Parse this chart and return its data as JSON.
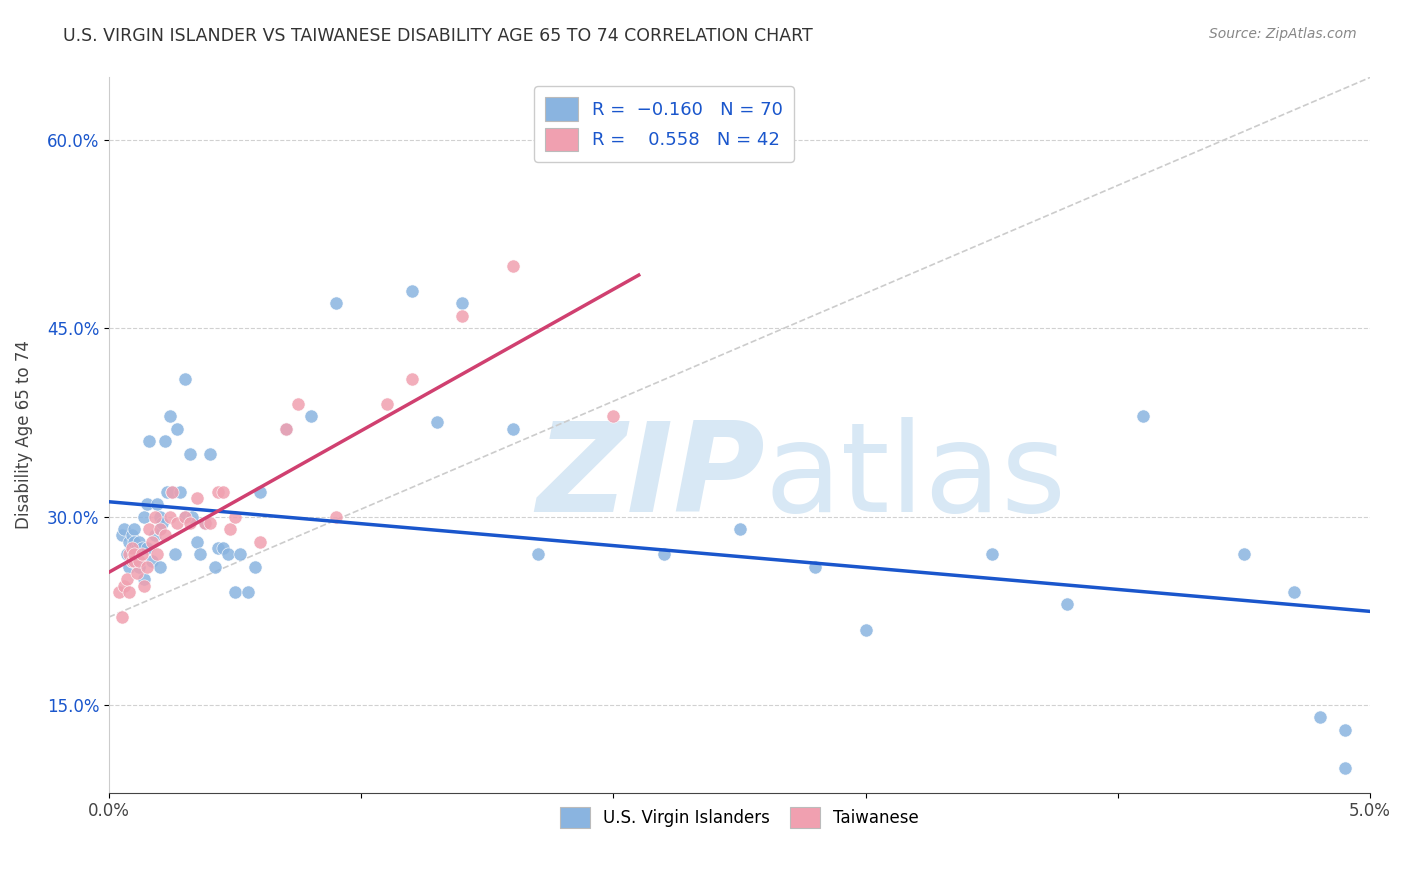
{
  "title": "U.S. VIRGIN ISLANDER VS TAIWANESE DISABILITY AGE 65 TO 74 CORRELATION CHART",
  "source": "Source: ZipAtlas.com",
  "ylabel": "Disability Age 65 to 74",
  "xlim": [
    0.0,
    0.05
  ],
  "ylim": [
    0.08,
    0.65
  ],
  "x_ticks": [
    0.0,
    0.01,
    0.02,
    0.03,
    0.04,
    0.05
  ],
  "x_tick_labels": [
    "0.0%",
    "",
    "",
    "",
    "",
    "5.0%"
  ],
  "y_ticks": [
    0.15,
    0.3,
    0.45,
    0.6
  ],
  "y_tick_labels": [
    "15.0%",
    "30.0%",
    "45.0%",
    "60.0%"
  ],
  "color_blue": "#8ab4e0",
  "color_pink": "#f0a0b0",
  "trend_blue": "#1a56cc",
  "trend_pink": "#d04070",
  "trend_ref": "#cccccc",
  "watermark_zip": "ZIP",
  "watermark_atlas": "atlas",
  "watermark_color": "#d8e8f5",
  "background": "#ffffff",
  "grid_color": "#cccccc",
  "label_blue": "U.S. Virgin Islanders",
  "label_pink": "Taiwanese",
  "R_blue": -0.16,
  "N_blue": 70,
  "R_pink": 0.558,
  "N_pink": 42,
  "blue_points_x": [
    0.0005,
    0.0006,
    0.0007,
    0.0008,
    0.0008,
    0.0009,
    0.0009,
    0.001,
    0.001,
    0.001,
    0.0011,
    0.0012,
    0.0012,
    0.0013,
    0.0014,
    0.0014,
    0.0015,
    0.0015,
    0.0016,
    0.0017,
    0.0018,
    0.0019,
    0.002,
    0.002,
    0.002,
    0.0021,
    0.0022,
    0.0023,
    0.0024,
    0.0025,
    0.0026,
    0.0027,
    0.0028,
    0.003,
    0.003,
    0.0032,
    0.0033,
    0.0035,
    0.0036,
    0.0038,
    0.004,
    0.0042,
    0.0043,
    0.0045,
    0.0047,
    0.005,
    0.0052,
    0.0055,
    0.0058,
    0.006,
    0.007,
    0.008,
    0.009,
    0.012,
    0.013,
    0.014,
    0.016,
    0.017,
    0.022,
    0.025,
    0.028,
    0.03,
    0.035,
    0.038,
    0.041,
    0.045,
    0.047,
    0.048,
    0.049,
    0.049
  ],
  "blue_points_y": [
    0.285,
    0.29,
    0.27,
    0.28,
    0.26,
    0.285,
    0.265,
    0.27,
    0.29,
    0.28,
    0.275,
    0.28,
    0.26,
    0.275,
    0.25,
    0.3,
    0.275,
    0.31,
    0.36,
    0.265,
    0.285,
    0.31,
    0.3,
    0.29,
    0.26,
    0.295,
    0.36,
    0.32,
    0.38,
    0.32,
    0.27,
    0.37,
    0.32,
    0.3,
    0.41,
    0.35,
    0.3,
    0.28,
    0.27,
    0.295,
    0.35,
    0.26,
    0.275,
    0.275,
    0.27,
    0.24,
    0.27,
    0.24,
    0.26,
    0.32,
    0.37,
    0.38,
    0.47,
    0.48,
    0.375,
    0.47,
    0.37,
    0.27,
    0.27,
    0.29,
    0.26,
    0.21,
    0.27,
    0.23,
    0.38,
    0.27,
    0.24,
    0.14,
    0.13,
    0.1
  ],
  "pink_points_x": [
    0.0004,
    0.0005,
    0.0006,
    0.0007,
    0.0008,
    0.0008,
    0.0009,
    0.0009,
    0.001,
    0.001,
    0.0011,
    0.0012,
    0.0013,
    0.0014,
    0.0015,
    0.0016,
    0.0017,
    0.0018,
    0.0019,
    0.002,
    0.0022,
    0.0024,
    0.0025,
    0.0027,
    0.003,
    0.0032,
    0.0035,
    0.0038,
    0.004,
    0.0043,
    0.0045,
    0.0048,
    0.005,
    0.006,
    0.007,
    0.0075,
    0.009,
    0.011,
    0.012,
    0.014,
    0.016,
    0.02
  ],
  "pink_points_y": [
    0.24,
    0.22,
    0.245,
    0.25,
    0.24,
    0.27,
    0.265,
    0.275,
    0.265,
    0.27,
    0.255,
    0.265,
    0.27,
    0.245,
    0.26,
    0.29,
    0.28,
    0.3,
    0.27,
    0.29,
    0.285,
    0.3,
    0.32,
    0.295,
    0.3,
    0.295,
    0.315,
    0.295,
    0.295,
    0.32,
    0.32,
    0.29,
    0.3,
    0.28,
    0.37,
    0.39,
    0.3,
    0.39,
    0.41,
    0.46,
    0.5,
    0.38
  ]
}
